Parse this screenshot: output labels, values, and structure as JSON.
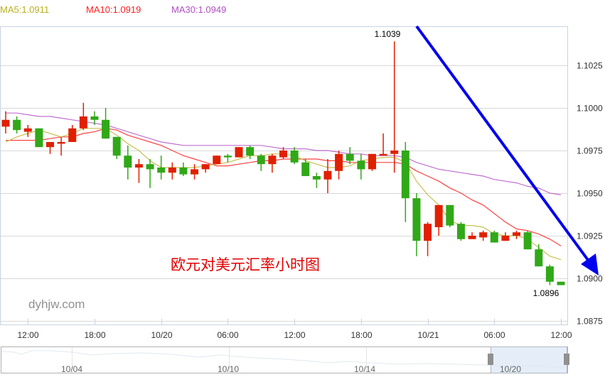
{
  "legend": {
    "ma5": {
      "label": "MA5:1.0911",
      "color": "#b8b020"
    },
    "ma10": {
      "label": "MA10:1.0919",
      "color": "#ff3030"
    },
    "ma30": {
      "label": "MA30:1.0949",
      "color": "#b050c0"
    }
  },
  "watermark": "dyhjw.com",
  "chart_data": {
    "type": "candlestick",
    "title": "欧元对美元汇率小时图",
    "up_color": "#e02000",
    "down_color": "#30a818",
    "ylim": [
      1.0865,
      1.1054
    ],
    "y_ticks": [
      "1.1025",
      "1.1000",
      "1.0975",
      "1.0950",
      "1.0925",
      "1.0900",
      "1.0875"
    ],
    "x_ticks": [
      {
        "label": "12:00",
        "index": 2
      },
      {
        "label": "18:00",
        "index": 8
      },
      {
        "label": "10/20",
        "index": 14
      },
      {
        "label": "06:00",
        "index": 20
      },
      {
        "label": "12:00",
        "index": 26
      },
      {
        "label": "18:00",
        "index": 32
      },
      {
        "label": "10/21",
        "index": 38
      },
      {
        "label": "06:00",
        "index": 44
      },
      {
        "label": "12:00",
        "index": 50
      }
    ],
    "annotations": {
      "high_label": "1.1039",
      "high_index": 35,
      "low_label": "1.0896",
      "low_index": 49
    },
    "ohlc": [
      [
        1.0989,
        1.0998,
        1.0985,
        1.0993
      ],
      [
        1.0993,
        1.0995,
        1.0985,
        1.0987
      ],
      [
        1.0986,
        1.099,
        1.0983,
        1.0988
      ],
      [
        1.0988,
        1.0988,
        1.0977,
        1.0977
      ],
      [
        1.0977,
        1.098,
        1.0973,
        1.098
      ],
      [
        1.0979,
        1.0983,
        1.0972,
        1.098
      ],
      [
        1.098,
        1.099,
        1.098,
        1.0988
      ],
      [
        1.0988,
        1.1003,
        1.0987,
        1.0995
      ],
      [
        1.0995,
        1.0998,
        1.099,
        1.0993
      ],
      [
        1.0993,
        1.1,
        1.0982,
        1.0982
      ],
      [
        1.0983,
        1.0983,
        1.097,
        1.0972
      ],
      [
        1.0972,
        1.0978,
        1.0958,
        1.0965
      ],
      [
        1.0965,
        1.097,
        1.0956,
        1.0967
      ],
      [
        1.0967,
        1.097,
        1.0953,
        1.0964
      ],
      [
        1.0965,
        1.0972,
        1.0958,
        1.0962
      ],
      [
        1.0962,
        1.0968,
        1.0958,
        1.0965
      ],
      [
        1.0965,
        1.0968,
        1.096,
        1.0961
      ],
      [
        1.0961,
        1.0967,
        1.0958,
        1.0964
      ],
      [
        1.0964,
        1.0967,
        1.0962,
        1.0967
      ],
      [
        1.0967,
        1.0972,
        1.0967,
        1.0972
      ],
      [
        1.0972,
        1.0973,
        1.0968,
        1.0971
      ],
      [
        1.0971,
        1.0977,
        1.0971,
        1.0977
      ],
      [
        1.0977,
        1.0978,
        1.097,
        1.0972
      ],
      [
        1.0972,
        1.0973,
        1.0963,
        1.0967
      ],
      [
        1.0967,
        1.0973,
        1.0962,
        1.0972
      ],
      [
        1.0971,
        1.0977,
        1.097,
        1.0975
      ],
      [
        1.0975,
        1.0977,
        1.0967,
        1.0968
      ],
      [
        1.0968,
        1.097,
        1.096,
        1.096
      ],
      [
        1.096,
        1.0962,
        1.0953,
        1.0958
      ],
      [
        1.0958,
        1.097,
        1.095,
        1.0963
      ],
      [
        1.0963,
        1.0975,
        1.0958,
        1.0973
      ],
      [
        1.0973,
        1.0977,
        1.0967,
        1.0969
      ],
      [
        1.0969,
        1.0973,
        1.0958,
        1.0964
      ],
      [
        1.0964,
        1.0973,
        1.0963,
        1.0973
      ],
      [
        1.0972,
        1.0985,
        1.0972,
        1.0973
      ],
      [
        1.0973,
        1.1039,
        1.0962,
        1.0975
      ],
      [
        1.0975,
        1.098,
        1.0933,
        1.0947
      ],
      [
        1.0947,
        1.095,
        1.0913,
        1.0922
      ],
      [
        1.0922,
        1.0933,
        1.0913,
        1.0932
      ],
      [
        1.093,
        1.0943,
        1.0925,
        1.0943
      ],
      [
        1.0943,
        1.0943,
        1.093,
        1.0931
      ],
      [
        1.0932,
        1.0933,
        1.0922,
        1.0923
      ],
      [
        1.0923,
        1.0927,
        1.0923,
        1.0925
      ],
      [
        1.0924,
        1.0928,
        1.0922,
        1.0927
      ],
      [
        1.0927,
        1.0928,
        1.0921,
        1.0921
      ],
      [
        1.0922,
        1.0927,
        1.0922,
        1.0925
      ],
      [
        1.0925,
        1.0928,
        1.0923,
        1.0927
      ],
      [
        1.0927,
        1.0928,
        1.0917,
        1.0917
      ],
      [
        1.0917,
        1.092,
        1.0907,
        1.0907
      ],
      [
        1.0907,
        1.0908,
        1.0896,
        1.0898
      ],
      [
        1.0898,
        1.0898,
        1.0896,
        1.0896
      ]
    ],
    "ma5": [
      1.098,
      1.0983,
      1.0985,
      1.0987,
      1.0985,
      1.0983,
      1.0985,
      1.0988,
      1.0988,
      1.0988,
      1.0984,
      1.0979,
      1.0975,
      1.0969,
      1.0965,
      1.0965,
      1.0965,
      1.0965,
      1.0966,
      1.0967,
      1.0968,
      1.097,
      1.0972,
      1.0972,
      1.0973,
      1.0973,
      1.0972,
      1.0969,
      1.0967,
      1.0965,
      1.0965,
      1.0966,
      1.0969,
      1.097,
      1.0971,
      1.0971,
      1.0968,
      1.0957,
      1.0949,
      1.0943,
      1.0934,
      1.0931,
      1.0931,
      1.093,
      1.0926,
      1.0925,
      1.0925,
      1.0923,
      1.0918,
      1.0913,
      1.0911
    ],
    "ma10": [
      1.0981,
      1.0981,
      1.0981,
      1.0981,
      1.0982,
      1.0983,
      1.0983,
      1.0985,
      1.0986,
      1.0988,
      1.0987,
      1.0984,
      1.0982,
      1.098,
      1.0978,
      1.0975,
      1.0972,
      1.097,
      1.0968,
      1.0966,
      1.0966,
      1.0967,
      1.0968,
      1.0969,
      1.0969,
      1.097,
      1.097,
      1.097,
      1.097,
      1.0969,
      1.0969,
      1.0968,
      1.0968,
      1.0968,
      1.0968,
      1.0968,
      1.0967,
      1.0963,
      1.096,
      1.0957,
      1.0953,
      1.095,
      1.0946,
      1.0943,
      1.0938,
      1.0933,
      1.0929,
      1.0928,
      1.0926,
      1.0923,
      1.0919
    ],
    "ma30": [
      1.0997,
      1.0997,
      1.0996,
      1.0995,
      1.0995,
      1.0994,
      1.0993,
      1.0992,
      1.0991,
      1.099,
      1.0988,
      1.0986,
      1.0984,
      1.0982,
      1.098,
      1.0979,
      1.0978,
      1.0978,
      1.0978,
      1.0978,
      1.0978,
      1.0978,
      1.0978,
      1.0978,
      1.0977,
      1.0976,
      1.0976,
      1.0976,
      1.0975,
      1.0975,
      1.0974,
      1.0973,
      1.0973,
      1.0972,
      1.0972,
      1.0972,
      1.0971,
      1.0968,
      1.0966,
      1.0964,
      1.0963,
      1.0962,
      1.0961,
      1.096,
      1.0958,
      1.0957,
      1.0956,
      1.0954,
      1.0953,
      1.095,
      1.0949
    ],
    "arrow_color": "#0000ee"
  },
  "navigator": {
    "labels": [
      "10/04",
      "10/10",
      "10/14",
      "10/20"
    ]
  }
}
